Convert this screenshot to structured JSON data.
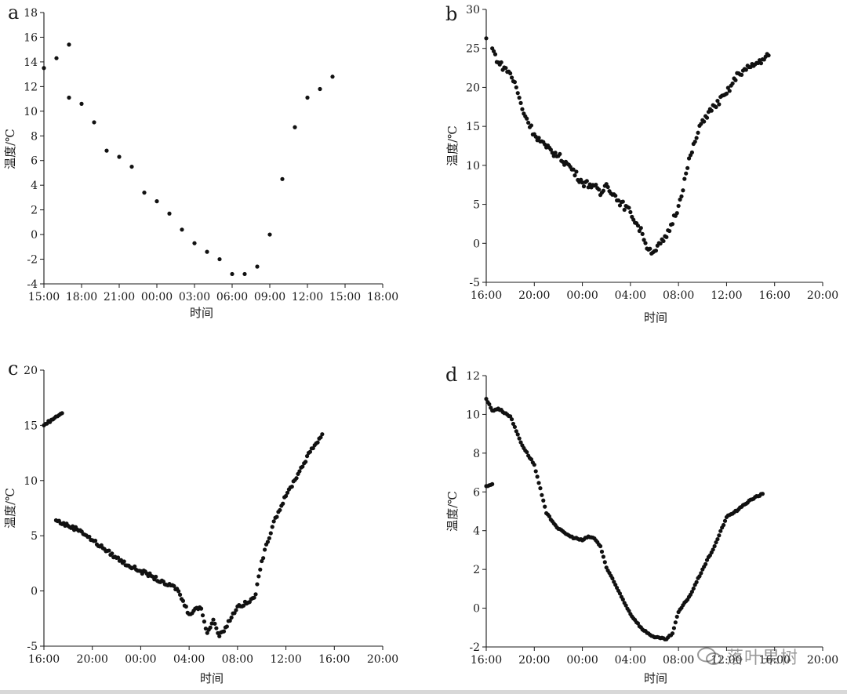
{
  "watermark": {
    "text": "落叶果树"
  },
  "chart_data": [
    {
      "panel": "a",
      "type": "scatter",
      "xlabel": "时间",
      "ylabel": "温度/℃",
      "x_ticks": [
        "15:00",
        "18:00",
        "21:00",
        "00:00",
        "03:00",
        "06:00",
        "09:00",
        "12:00",
        "15:00",
        "18:00"
      ],
      "y_ticks": [
        -4,
        -2,
        0,
        2,
        4,
        6,
        8,
        10,
        12,
        14,
        16,
        18
      ],
      "xlim_hours": [
        15,
        42
      ],
      "ylim": [
        -4,
        18
      ],
      "series": [
        {
          "x": [
            "17:00",
            "18:00",
            "19:00",
            "20:00",
            "21:00",
            "22:00",
            "23:00",
            "00:00",
            "01:00",
            "02:00",
            "03:00",
            "04:00",
            "05:00",
            "06:00",
            "07:00",
            "08:00",
            "09:00",
            "10:00",
            "11:00",
            "12:00",
            "13:00",
            "14:00",
            "15:00",
            "16:00",
            "17:00"
          ],
          "y": [
            11.1,
            10.6,
            9.1,
            6.8,
            6.3,
            5.5,
            3.4,
            2.7,
            1.7,
            0.4,
            -0.7,
            -1.4,
            -2.0,
            -3.2,
            -3.2,
            -2.6,
            0.0,
            4.5,
            8.7,
            11.1,
            11.8,
            12.8,
            13.5,
            14.3,
            15.4
          ]
        }
      ]
    },
    {
      "panel": "b",
      "type": "scatter",
      "xlabel": "时间",
      "ylabel": "温度/℃",
      "x_ticks": [
        "16:00",
        "20:00",
        "00:00",
        "04:00",
        "08:00",
        "12:00",
        "16:00",
        "20:00"
      ],
      "y_ticks": [
        -5,
        0,
        5,
        10,
        15,
        20,
        25,
        30
      ],
      "xlim_hours": [
        16,
        44
      ],
      "ylim": [
        -5,
        30
      ],
      "series": [
        {
          "x": [
            "16:30",
            "17:00",
            "18:00",
            "18:30",
            "19:00",
            "20:00",
            "21:00",
            "22:00",
            "23:00",
            "00:00",
            "01:00",
            "01:30",
            "02:00",
            "03:00",
            "04:00",
            "05:00",
            "05:30",
            "06:00",
            "07:00",
            "08:00",
            "09:00",
            "10:00",
            "11:00",
            "12:00",
            "13:00",
            "14:00",
            "15:00",
            "15:30",
            "16:00"
          ],
          "y": [
            25.0,
            23.2,
            21.8,
            20.0,
            17.2,
            14.0,
            12.3,
            11.2,
            9.8,
            7.8,
            7.4,
            6.2,
            7.6,
            5.5,
            4.0,
            1.2,
            -0.8,
            -1.0,
            0.8,
            4.8,
            11.3,
            15.8,
            17.6,
            19.2,
            21.8,
            22.6,
            23.6,
            24.1,
            26.3
          ]
        }
      ]
    },
    {
      "panel": "c",
      "type": "scatter",
      "xlabel": "时间",
      "ylabel": "温度/℃",
      "x_ticks": [
        "16:00",
        "20:00",
        "00:00",
        "04:00",
        "08:00",
        "12:00",
        "16:00",
        "20:00"
      ],
      "y_ticks": [
        -5,
        0,
        5,
        10,
        15,
        20
      ],
      "xlim_hours": [
        16,
        44
      ],
      "ylim": [
        -5,
        20
      ],
      "series": [
        {
          "x": [
            "17:00",
            "18:00",
            "19:00",
            "20:00",
            "21:00",
            "22:00",
            "23:00",
            "00:00",
            "01:00",
            "02:00",
            "02:30",
            "03:00",
            "04:00",
            "04:30",
            "05:00",
            "05:30",
            "06:00",
            "06:30",
            "07:00",
            "08:00",
            "09:00",
            "09:30",
            "10:00",
            "11:00",
            "12:00",
            "13:00",
            "14:00",
            "15:00",
            "16:00",
            "17:00",
            "17:30"
          ],
          "y": [
            6.4,
            5.9,
            5.5,
            4.6,
            3.8,
            3.0,
            2.3,
            1.8,
            1.3,
            0.6,
            0.5,
            0.2,
            -2.1,
            -1.6,
            -1.6,
            -3.8,
            -2.6,
            -4.1,
            -3.3,
            -1.4,
            -1.0,
            -0.3,
            2.7,
            6.3,
            8.6,
            10.6,
            12.6,
            14.2,
            15.0,
            15.8,
            16.1
          ]
        }
      ]
    },
    {
      "panel": "d",
      "type": "scatter",
      "xlabel": "时间",
      "ylabel": "温度/℃",
      "x_ticks": [
        "16:00",
        "20:00",
        "00:00",
        "04:00",
        "08:00",
        "12:00",
        "16:00",
        "20:00"
      ],
      "y_ticks": [
        -2,
        0,
        2,
        4,
        6,
        8,
        10,
        12
      ],
      "xlim_hours": [
        16,
        44
      ],
      "ylim": [
        -2,
        12
      ],
      "series": [
        {
          "x": [
            "16:00",
            "16:30",
            "17:00",
            "18:00",
            "19:00",
            "20:00",
            "21:00",
            "22:00",
            "23:00",
            "00:00",
            "00:30",
            "01:00",
            "01:30",
            "02:00",
            "03:00",
            "04:00",
            "05:00",
            "06:00",
            "07:00",
            "07:30",
            "08:00",
            "09:00",
            "10:00",
            "11:00",
            "12:00",
            "13:00",
            "14:00",
            "15:00",
            "16:00",
            "16:30"
          ],
          "y": [
            10.8,
            10.2,
            10.3,
            9.9,
            8.4,
            7.4,
            4.9,
            4.1,
            3.7,
            3.5,
            3.7,
            3.6,
            3.2,
            2.1,
            0.9,
            -0.3,
            -1.1,
            -1.5,
            -1.6,
            -1.3,
            -0.2,
            0.7,
            2.0,
            3.2,
            4.7,
            5.1,
            5.6,
            5.9,
            6.3,
            6.4
          ]
        }
      ]
    }
  ]
}
